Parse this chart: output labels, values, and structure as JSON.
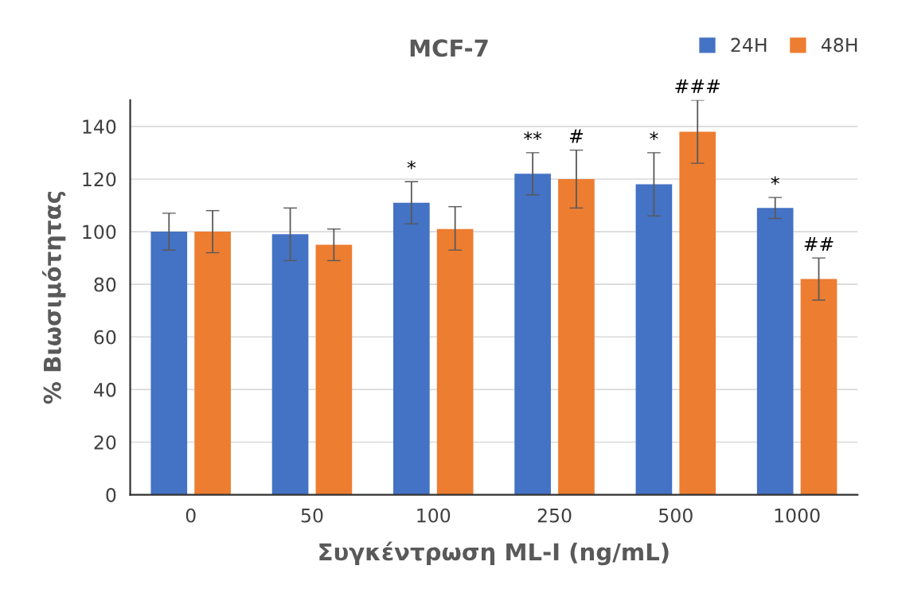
{
  "chart_data": {
    "type": "bar",
    "title": "MCF-7",
    "xlabel": "Συγκέντρωση ML-I (ng/mL)",
    "ylabel": "% Βιωσιμότητας",
    "categories": [
      "0",
      "50",
      "100",
      "250",
      "500",
      "1000"
    ],
    "series": [
      {
        "name": "24H",
        "color": "#4472c4",
        "values": [
          100,
          99,
          111,
          122,
          118,
          109
        ],
        "errors": [
          [
            93,
            107
          ],
          [
            89,
            109
          ],
          [
            103,
            119
          ],
          [
            114,
            130
          ],
          [
            106,
            130
          ],
          [
            105,
            113
          ]
        ],
        "value_labels": [
          null,
          null,
          "*",
          "**",
          "*",
          "*"
        ]
      },
      {
        "name": "48H",
        "color": "#ed7d31",
        "values": [
          100,
          95,
          101,
          120,
          138,
          82
        ],
        "errors": [
          [
            92,
            108
          ],
          [
            89,
            101
          ],
          [
            93,
            109.5
          ],
          [
            109,
            131
          ],
          [
            126,
            150
          ],
          [
            74,
            90
          ]
        ],
        "value_labels": [
          null,
          null,
          null,
          "#",
          "###",
          "##"
        ]
      }
    ],
    "ylim": [
      0,
      150
    ],
    "yticks": [
      0,
      20,
      40,
      60,
      80,
      100,
      120,
      140
    ],
    "grid": "y",
    "legend": "top right"
  }
}
